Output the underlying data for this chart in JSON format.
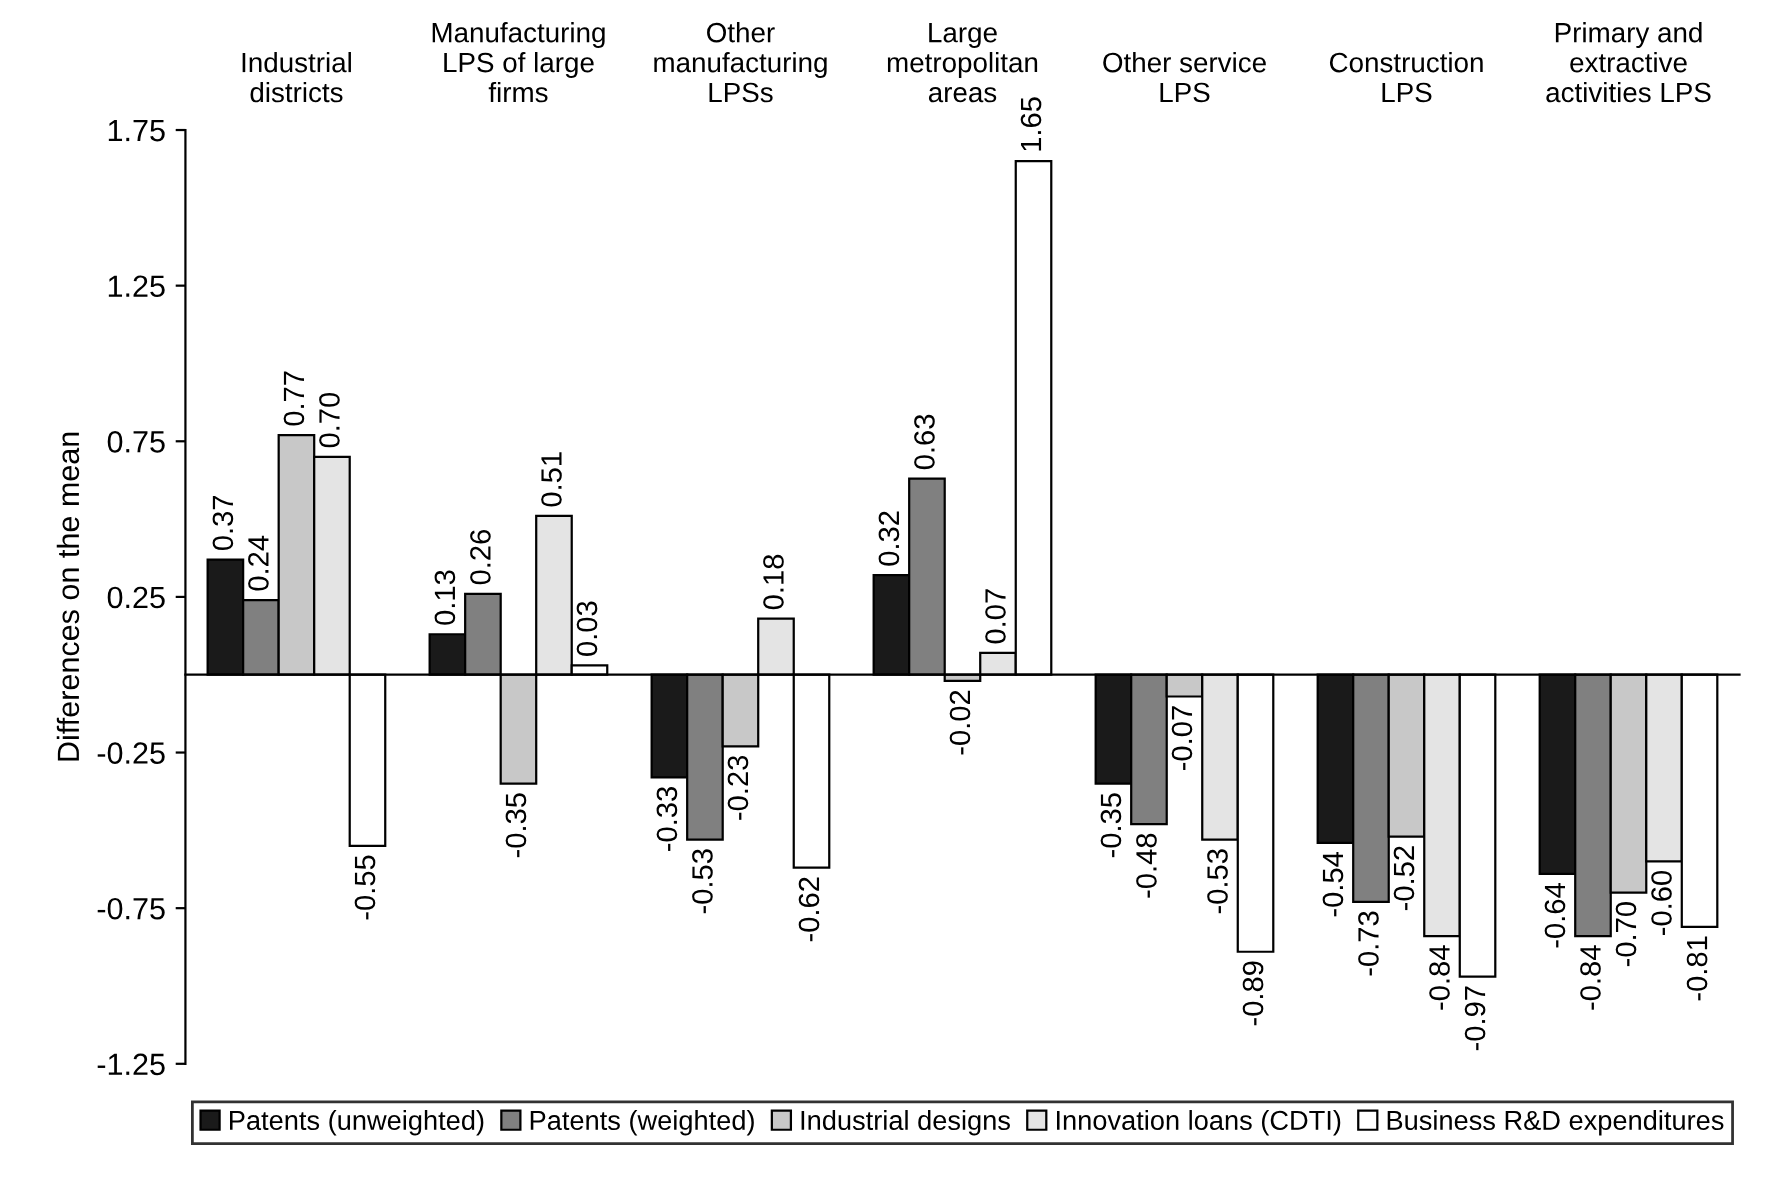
{
  "chart_data": {
    "type": "bar",
    "ylabel": "Differences on the mean",
    "categories": [
      "Industrial\ndistricts",
      "Manufacturing\nLPS of large\nfirms",
      "Other\nmanufacturing\nLPSs",
      "Large\nmetropolitan\nareas",
      "Other service\nLPS",
      "Construction\nLPS",
      "Primary and\nextractive\nactivities LPS"
    ],
    "series": [
      {
        "name": "Patents (unweighted)",
        "color": "#1a1a1a",
        "values": [
          0.37,
          0.13,
          -0.33,
          0.32,
          -0.35,
          -0.54,
          -0.64
        ],
        "value_labels": [
          "0.37",
          "0.13",
          "-0.33",
          "0.32",
          "-0.35",
          "-0.54",
          "-0.64"
        ]
      },
      {
        "name": "Patents (weighted)",
        "color": "#808080",
        "values": [
          0.24,
          0.26,
          -0.53,
          0.63,
          -0.48,
          -0.73,
          -0.84
        ],
        "value_labels": [
          "0.24",
          "0.26",
          "-0.53",
          "0.63",
          "-0.48",
          "-0.73",
          "-0.84"
        ]
      },
      {
        "name": "Industrial designs",
        "color": "#c8c8c8",
        "values": [
          0.77,
          -0.35,
          -0.23,
          -0.02,
          -0.07,
          -0.52,
          -0.7
        ],
        "value_labels": [
          "0.77",
          "-0.35",
          "-0.23",
          "-0.02",
          "-0.07",
          "-0.52",
          "-0.70"
        ]
      },
      {
        "name": "Innovation loans (CDTI)",
        "color": "#e4e4e4",
        "values": [
          0.7,
          0.51,
          0.18,
          0.07,
          -0.53,
          -0.84,
          -0.6
        ],
        "value_labels": [
          "0.70",
          "0.51",
          "0.18",
          "0.07",
          "-0.53",
          "-0.84",
          "-0.60"
        ]
      },
      {
        "name": "Business R&D expenditures",
        "color": "#ffffff",
        "values": [
          -0.55,
          0.03,
          -0.62,
          1.65,
          -0.89,
          -0.97,
          -0.81
        ],
        "value_labels": [
          "-0.55",
          "0.03",
          "-0.62",
          "1.65",
          "-0.89",
          "-0.97",
          "-0.81"
        ]
      }
    ],
    "ylim": [
      -1.25,
      1.75
    ],
    "yticks": [
      {
        "value": -1.25,
        "label": "-1.25"
      },
      {
        "value": -0.75,
        "label": "-0.75"
      },
      {
        "value": -0.25,
        "label": "-0.25"
      },
      0.25,
      0.75,
      1.25,
      1.75
    ],
    "grid": false,
    "legend": "bottom"
  }
}
